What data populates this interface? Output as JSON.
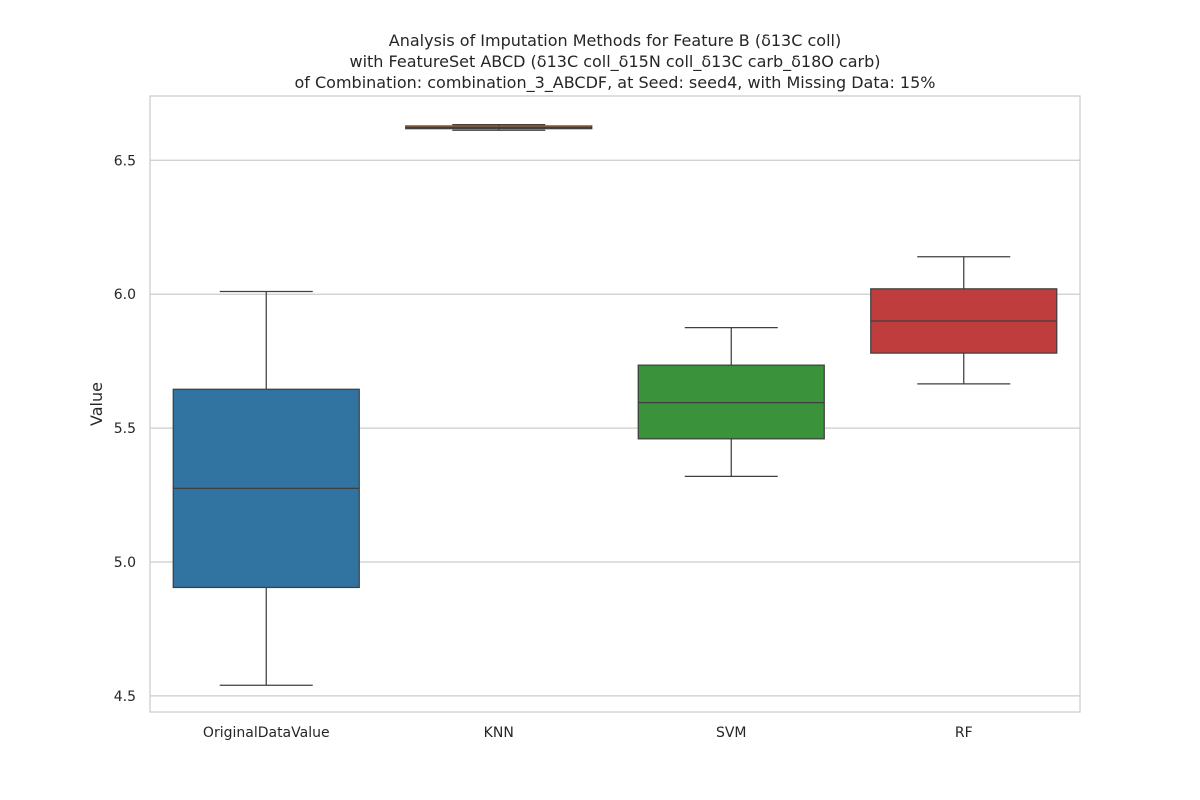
{
  "chart_data": {
    "type": "box",
    "title_lines": [
      "Analysis of Imputation Methods for Feature B (δ13C coll)",
      "with FeatureSet ABCD (δ13C coll_δ15N coll_δ13C carb_δ18O carb)",
      "of Combination: combination_3_ABCDF, at Seed: seed4, with Missing Data: 15%"
    ],
    "xlabel": "",
    "ylabel": "Value",
    "ylim": [
      4.44,
      6.74
    ],
    "yticks": [
      4.5,
      5.0,
      5.5,
      6.0,
      6.5
    ],
    "ytick_labels": [
      "4.5",
      "5.0",
      "5.5",
      "6.0",
      "6.5"
    ],
    "grid": true,
    "categories": [
      "OriginalDataValue",
      "KNN",
      "SVM",
      "RF"
    ],
    "boxes": [
      {
        "category": "OriginalDataValue",
        "whisker_low": 4.54,
        "q1": 4.905,
        "median": 5.275,
        "q3": 5.645,
        "whisker_high": 6.01,
        "color": "#3274a1"
      },
      {
        "category": "KNN",
        "whisker_low": 6.612,
        "q1": 6.618,
        "median": 6.622,
        "q3": 6.628,
        "whisker_high": 6.633,
        "color": "#e1812c"
      },
      {
        "category": "SVM",
        "whisker_low": 5.32,
        "q1": 5.46,
        "median": 5.595,
        "q3": 5.735,
        "whisker_high": 5.875,
        "color": "#3a923a"
      },
      {
        "category": "RF",
        "whisker_low": 5.665,
        "q1": 5.78,
        "median": 5.9,
        "q3": 6.02,
        "whisker_high": 6.14,
        "color": "#c03d3e"
      }
    ]
  }
}
